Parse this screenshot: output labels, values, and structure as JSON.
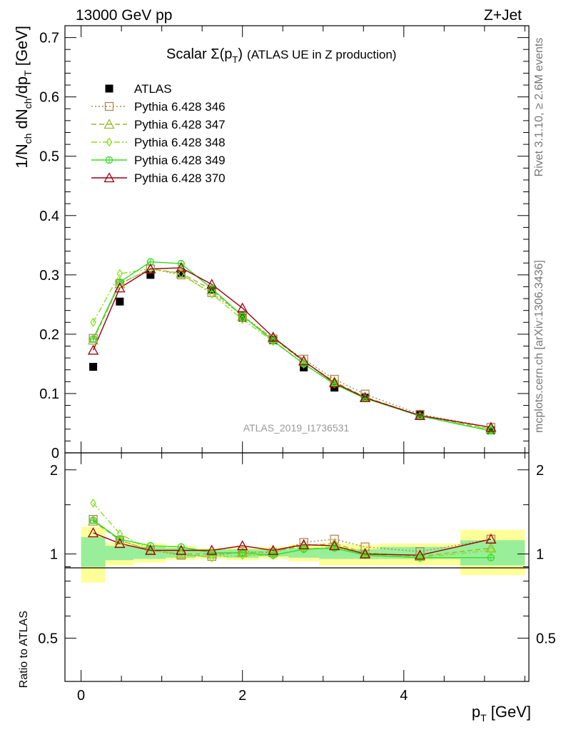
{
  "header": {
    "left": "13000 GeV pp",
    "right": "Z+Jet"
  },
  "side_labels": {
    "rivet": "Rivet 3.1.10, ≥ 2.6M events",
    "mcplots": "mcplots.cern.ch [arXiv:1306.3436]"
  },
  "title": {
    "main": "Scalar Σ(p",
    "sub": "T",
    "close": ")",
    "rest": "(ATLAS UE in Z production)"
  },
  "watermark": "ATLAS_2019_I1736531",
  "ylabel_main": "1/N_ch dN_ch/dp_T [GeV]",
  "ylabel_ratio": "Ratio to ATLAS",
  "xlabel": "p_T [GeV]",
  "chart_data": [
    {
      "type": "scatter",
      "panel": "main",
      "xlim": [
        -0.2,
        5.55
      ],
      "ylim": [
        0,
        0.72
      ],
      "yticks": [
        0,
        0.1,
        0.2,
        0.3,
        0.4,
        0.5,
        0.6,
        0.7
      ],
      "ytick_labels": [
        "0",
        "0.1",
        "0.2",
        "0.3",
        "0.4",
        "0.5",
        "0.6",
        "0.7"
      ],
      "x": [
        0.15,
        0.48,
        0.86,
        1.24,
        1.62,
        2.0,
        2.38,
        2.76,
        3.14,
        3.52,
        4.2,
        5.08
      ],
      "x_bins": [
        [
          0.0,
          0.3
        ],
        [
          0.3,
          0.65
        ],
        [
          0.65,
          1.05
        ],
        [
          1.05,
          1.42
        ],
        [
          1.42,
          1.8
        ],
        [
          1.8,
          2.2
        ],
        [
          2.2,
          2.57
        ],
        [
          2.57,
          2.95
        ],
        [
          2.95,
          3.32
        ],
        [
          3.32,
          3.7
        ],
        [
          3.7,
          4.7
        ],
        [
          4.7,
          5.5
        ]
      ],
      "legend_position": "top-left",
      "series": [
        {
          "name": "ATLAS",
          "marker": "square",
          "color": "#000000",
          "line": "none",
          "values": [
            0.145,
            0.255,
            0.3,
            0.302,
            0.275,
            0.228,
            0.19,
            0.144,
            0.11,
            0.093,
            0.064,
            0.038
          ]
        },
        {
          "name": "Pythia 6.428 346",
          "marker": "open-square",
          "color": "#b08850",
          "line": "dotted",
          "values": [
            0.193,
            0.285,
            0.31,
            0.3,
            0.27,
            0.232,
            0.192,
            0.158,
            0.124,
            0.099,
            0.065,
            0.043
          ]
        },
        {
          "name": "Pythia 6.428 347",
          "marker": "open-triangle",
          "color": "#9ab82c",
          "line": "dashed",
          "values": [
            0.19,
            0.285,
            0.31,
            0.303,
            0.275,
            0.23,
            0.193,
            0.154,
            0.12,
            0.094,
            0.063,
            0.04
          ]
        },
        {
          "name": "Pythia 6.428 348",
          "marker": "open-diamond",
          "color": "#88e020",
          "line": "dashdot",
          "values": [
            0.22,
            0.302,
            0.31,
            0.302,
            0.268,
            0.225,
            0.188,
            0.15,
            0.117,
            0.093,
            0.062,
            0.039
          ]
        },
        {
          "name": "Pythia 6.428 349",
          "marker": "open-circle-cross",
          "color": "#33dd22",
          "line": "solid",
          "values": [
            0.192,
            0.288,
            0.322,
            0.319,
            0.277,
            0.231,
            0.189,
            0.15,
            0.116,
            0.092,
            0.062,
            0.037
          ]
        },
        {
          "name": "Pythia 6.428 370",
          "marker": "open-triangle",
          "color": "#990011",
          "line": "solid",
          "values": [
            0.173,
            0.278,
            0.31,
            0.312,
            0.284,
            0.244,
            0.195,
            0.155,
            0.118,
            0.093,
            0.063,
            0.043
          ]
        }
      ]
    },
    {
      "type": "scatter",
      "panel": "ratio",
      "ylim": [
        0.35,
        2.3
      ],
      "yticks": [
        0.5,
        1,
        2
      ],
      "ytick_labels": [
        "0.5",
        "1",
        "2"
      ],
      "xticks": [
        0,
        2,
        4
      ],
      "xtick_labels": [
        "0",
        "2",
        "4"
      ],
      "band_inner": [
        [
          0.9,
          1.15
        ],
        [
          0.95,
          1.07
        ],
        [
          0.96,
          1.06
        ],
        [
          0.97,
          1.05
        ],
        [
          0.98,
          1.04
        ],
        [
          0.97,
          1.04
        ],
        [
          0.98,
          1.04
        ],
        [
          0.97,
          1.05
        ],
        [
          0.96,
          1.05
        ],
        [
          0.96,
          1.04
        ],
        [
          0.96,
          1.06
        ],
        [
          0.91,
          1.12
        ]
      ],
      "band_outer": [
        [
          0.79,
          1.25
        ],
        [
          0.91,
          1.1
        ],
        [
          0.93,
          1.09
        ],
        [
          0.95,
          1.07
        ],
        [
          0.96,
          1.05
        ],
        [
          0.95,
          1.06
        ],
        [
          0.96,
          1.06
        ],
        [
          0.94,
          1.08
        ],
        [
          0.91,
          1.09
        ],
        [
          0.91,
          1.08
        ],
        [
          0.91,
          1.09
        ],
        [
          0.84,
          1.22
        ]
      ],
      "series": [
        {
          "name": "Pythia 6.428 346",
          "values": [
            1.33,
            1.12,
            1.03,
            0.99,
            0.98,
            1.02,
            1.01,
            1.1,
            1.13,
            1.06,
            1.02,
            1.13
          ]
        },
        {
          "name": "Pythia 6.428 347",
          "values": [
            1.31,
            1.12,
            1.03,
            1.0,
            1.0,
            1.01,
            1.02,
            1.07,
            1.09,
            1.01,
            0.98,
            1.05
          ]
        },
        {
          "name": "Pythia 6.428 348",
          "values": [
            1.52,
            1.18,
            1.03,
            1.0,
            0.97,
            0.99,
            0.99,
            1.04,
            1.06,
            1.0,
            0.97,
            1.03
          ]
        },
        {
          "name": "Pythia 6.428 349",
          "values": [
            1.32,
            1.13,
            1.07,
            1.06,
            1.01,
            1.01,
            0.99,
            1.04,
            1.05,
            0.99,
            0.97,
            0.97
          ]
        },
        {
          "name": "Pythia 6.428 370",
          "values": [
            1.19,
            1.09,
            1.03,
            1.03,
            1.03,
            1.07,
            1.03,
            1.08,
            1.07,
            1.0,
            0.99,
            1.13
          ]
        }
      ]
    }
  ]
}
